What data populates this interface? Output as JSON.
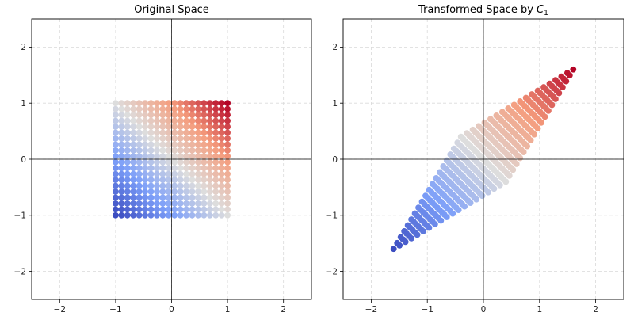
{
  "chart_data": [
    {
      "type": "scatter",
      "title": "Original Space",
      "title_sub": "",
      "xlim": [
        -2.5,
        2.5
      ],
      "ylim": [
        -2.5,
        2.5
      ],
      "xticks": [
        -2,
        -1,
        0,
        1,
        2
      ],
      "yticks": [
        -2,
        -1,
        0,
        1,
        2
      ],
      "tick_labels": [
        "−2",
        "−1",
        "0",
        "1",
        "2"
      ],
      "grid": true,
      "colormap": "coolwarm",
      "points": {
        "x_range": [
          -1,
          1
        ],
        "y_range": [
          -1,
          1
        ],
        "steps": 20,
        "color_by": "x + y",
        "description": "20×20 grid of points on [-1,1]×[-1,1]"
      }
    },
    {
      "type": "scatter",
      "title": "Transformed Space by ",
      "title_sub": "C",
      "title_subscript": "1",
      "xlim": [
        -2.5,
        2.5
      ],
      "ylim": [
        -2.5,
        2.5
      ],
      "xticks": [
        -2,
        -1,
        0,
        1,
        2
      ],
      "yticks": [
        -2,
        -1,
        0,
        1,
        2
      ],
      "tick_labels": [
        "−2",
        "−1",
        "0",
        "1",
        "2"
      ],
      "grid": true,
      "colormap": "coolwarm",
      "points": {
        "x_range": [
          -1,
          1
        ],
        "y_range": [
          -1,
          1
        ],
        "steps": 20,
        "color_by": "x + y",
        "matrix": [
          [
            1.0,
            0.6
          ],
          [
            0.6,
            1.0
          ]
        ]
      }
    }
  ]
}
